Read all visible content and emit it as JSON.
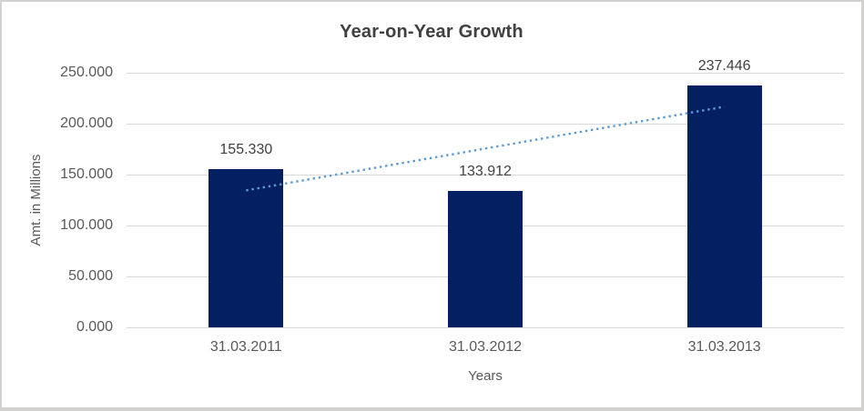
{
  "chart_data": {
    "type": "bar",
    "title": "Year-on-Year Growth",
    "xlabel": "Years",
    "ylabel": "Amt. in Millions",
    "categories": [
      "31.03.2011",
      "31.03.2012",
      "31.03.2013"
    ],
    "values": [
      155.33,
      133.912,
      237.446
    ],
    "data_labels": [
      "155.330",
      "133.912",
      "237.446"
    ],
    "ylim": [
      0,
      250
    ],
    "ytick_step": 50,
    "ytick_labels": [
      "0.000",
      "50.000",
      "100.000",
      "150.000",
      "200.000",
      "250.000"
    ],
    "grid": true,
    "legend": false,
    "trendline": {
      "type": "linear",
      "style": "dotted"
    },
    "colors": {
      "bar": "#052060",
      "trendline": "#5b9bd5",
      "gridline": "#d9d9d9",
      "title_text": "#404040",
      "data_label_text": "#404040",
      "axis_text": "#595959",
      "frame_border": "#d3d0d0",
      "background": "#ffffff"
    }
  }
}
